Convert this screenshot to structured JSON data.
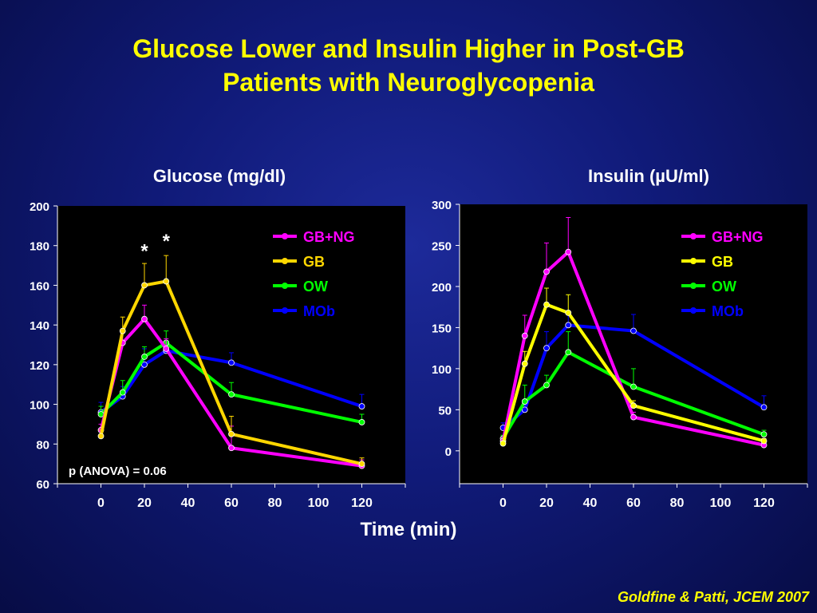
{
  "title": {
    "line1": "Glucose Lower and Insulin Higher in Post-GB",
    "line2": "Patients with Neuroglycopenia"
  },
  "xlabel": "Time (min)",
  "citation": "Goldfine & Patti, JCEM 2007",
  "chart_data": [
    {
      "type": "line",
      "title": "Glucose (mg/dl)",
      "xlim": [
        -20,
        140
      ],
      "ylim": [
        60,
        200
      ],
      "x_ticks": [
        0,
        20,
        40,
        60,
        80,
        100,
        120
      ],
      "y_ticks": [
        60,
        80,
        100,
        120,
        140,
        160,
        180,
        200
      ],
      "legend_position": "top-right",
      "annotation": "p (ANOVA) = 0.06",
      "significance_marks": [
        {
          "x": 20,
          "y": 174,
          "label": "*"
        },
        {
          "x": 30,
          "y": 179,
          "label": "*"
        }
      ],
      "series": [
        {
          "name": "GB+NG",
          "color": "#ff00ff",
          "x": [
            0,
            10,
            20,
            30,
            60,
            120
          ],
          "y": [
            87,
            131,
            143,
            128,
            78,
            69
          ],
          "err": [
            3,
            5,
            7,
            5,
            11,
            3
          ]
        },
        {
          "name": "GB",
          "color": "#ffd700",
          "x": [
            0,
            10,
            20,
            30,
            60,
            120
          ],
          "y": [
            84,
            137,
            160,
            162,
            85,
            70
          ],
          "err": [
            3,
            7,
            11,
            13,
            9,
            3
          ]
        },
        {
          "name": "OW",
          "color": "#00ff00",
          "x": [
            0,
            10,
            20,
            30,
            60,
            120
          ],
          "y": [
            95,
            106,
            124,
            131,
            105,
            91
          ],
          "err": [
            4,
            6,
            5,
            6,
            6,
            4
          ]
        },
        {
          "name": "MOb",
          "color": "#0000ff",
          "x": [
            0,
            10,
            20,
            30,
            60,
            120
          ],
          "y": [
            96,
            104,
            120,
            127,
            121,
            99
          ],
          "err": [
            5,
            5,
            8,
            5,
            5,
            6
          ]
        }
      ]
    },
    {
      "type": "line",
      "title": "Insulin (µU/ml)",
      "xlim": [
        -20,
        140
      ],
      "ylim": [
        -40,
        300
      ],
      "x_ticks": [
        0,
        20,
        40,
        60,
        80,
        100,
        120
      ],
      "y_ticks": [
        0,
        50,
        100,
        150,
        200,
        250,
        300
      ],
      "legend_position": "top-right",
      "series": [
        {
          "name": "GB+NG",
          "color": "#ff00ff",
          "x": [
            0,
            10,
            20,
            30,
            60,
            120
          ],
          "y": [
            12,
            140,
            218,
            242,
            41,
            7
          ],
          "err": [
            4,
            25,
            35,
            42,
            6,
            3
          ]
        },
        {
          "name": "GB",
          "color": "#ffff00",
          "x": [
            0,
            10,
            20,
            30,
            60,
            120
          ],
          "y": [
            9,
            106,
            178,
            168,
            55,
            12
          ],
          "err": [
            3,
            15,
            20,
            22,
            6,
            3
          ]
        },
        {
          "name": "OW",
          "color": "#00ff00",
          "x": [
            0,
            10,
            20,
            30,
            60,
            120
          ],
          "y": [
            15,
            60,
            80,
            120,
            78,
            20
          ],
          "err": [
            4,
            20,
            12,
            25,
            22,
            5
          ]
        },
        {
          "name": "MOb",
          "color": "#0000ff",
          "x": [
            0,
            10,
            20,
            30,
            60,
            120
          ],
          "y": [
            28,
            50,
            125,
            153,
            146,
            53
          ],
          "err": [
            6,
            10,
            20,
            15,
            20,
            14
          ]
        }
      ]
    }
  ]
}
